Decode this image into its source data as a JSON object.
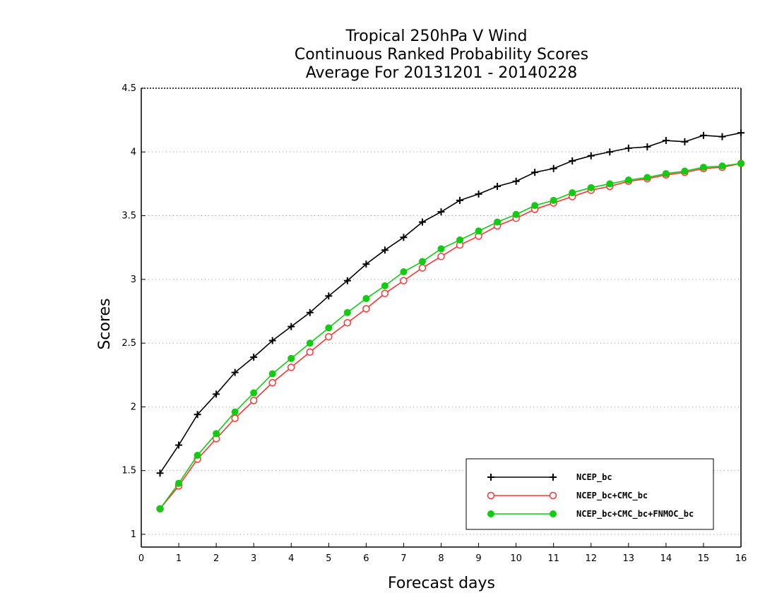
{
  "chart_data": {
    "type": "line",
    "title": [
      "Tropical 250hPa V Wind",
      "Continuous Ranked Probability Scores",
      "Average For 20131201 - 20140228"
    ],
    "xlabel": "Forecast days",
    "ylabel": "Scores",
    "xlim": [
      0,
      16
    ],
    "ylim": [
      0.9,
      4.5
    ],
    "xticks": [
      "0",
      "1",
      "2",
      "3",
      "4",
      "5",
      "6",
      "7",
      "8",
      "9",
      "10",
      "11",
      "12",
      "13",
      "14",
      "15",
      "16"
    ],
    "yticks": [
      "1",
      "1.5",
      "2",
      "2.5",
      "3",
      "3.5",
      "4",
      "4.5"
    ],
    "grid": "horizontal dotted",
    "legend_position": "bottom-right",
    "x": [
      0.5,
      1,
      1.5,
      2,
      2.5,
      3,
      3.5,
      4,
      4.5,
      5,
      5.5,
      6,
      6.5,
      7,
      7.5,
      8,
      8.5,
      9,
      9.5,
      10,
      10.5,
      11,
      11.5,
      12,
      12.5,
      13,
      13.5,
      14,
      14.5,
      15,
      15.5,
      16
    ],
    "series": [
      {
        "name": "NCEP_bc",
        "color": "#000000",
        "marker": "plus",
        "values": [
          1.48,
          1.7,
          1.94,
          2.1,
          2.27,
          2.39,
          2.52,
          2.63,
          2.74,
          2.87,
          2.99,
          3.12,
          3.23,
          3.33,
          3.45,
          3.53,
          3.62,
          3.67,
          3.73,
          3.77,
          3.84,
          3.87,
          3.93,
          3.97,
          4.0,
          4.03,
          4.04,
          4.09,
          4.08,
          4.13,
          4.12,
          4.15
        ]
      },
      {
        "name": "NCEP_bc+CMC_bc",
        "color": "#ff3333",
        "marker": "open-circle",
        "values": [
          1.2,
          1.38,
          1.59,
          1.75,
          1.91,
          2.05,
          2.19,
          2.31,
          2.43,
          2.55,
          2.66,
          2.77,
          2.89,
          2.99,
          3.09,
          3.18,
          3.27,
          3.34,
          3.42,
          3.48,
          3.55,
          3.6,
          3.65,
          3.7,
          3.73,
          3.77,
          3.79,
          3.82,
          3.84,
          3.87,
          3.88,
          3.91
        ]
      },
      {
        "name": "NCEP_bc+CMC_bc+FNMOC_bc",
        "color": "#11cc11",
        "marker": "filled-circle",
        "values": [
          1.2,
          1.4,
          1.62,
          1.79,
          1.96,
          2.11,
          2.26,
          2.38,
          2.5,
          2.62,
          2.74,
          2.85,
          2.95,
          3.06,
          3.14,
          3.24,
          3.31,
          3.38,
          3.45,
          3.51,
          3.58,
          3.62,
          3.68,
          3.72,
          3.75,
          3.78,
          3.8,
          3.83,
          3.85,
          3.88,
          3.89,
          3.91
        ]
      }
    ]
  }
}
